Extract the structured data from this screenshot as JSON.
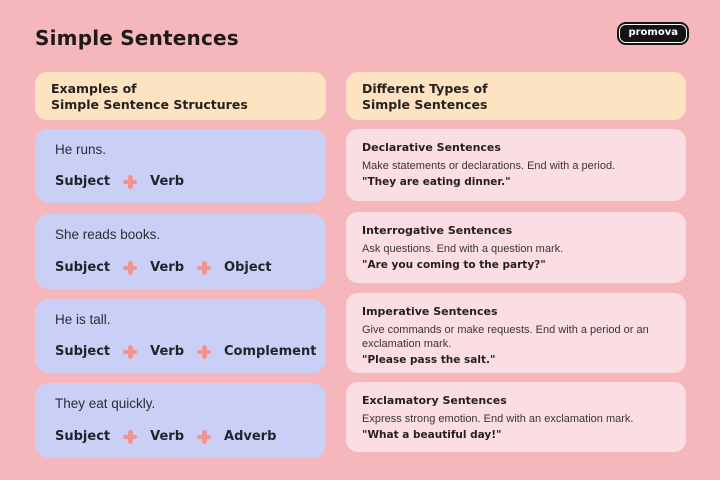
{
  "page": {
    "title": "Simple Sentences",
    "brand": "promova"
  },
  "colors": {
    "background": "#f5b6bc",
    "section_header": "#fde3c1",
    "structure_card": "#cad0f5",
    "type_card": "#fbdee3",
    "plus_icon": "#ef948f",
    "badge_background": "#141414",
    "text_dark": "#241f1c"
  },
  "left_section": {
    "header_line1": "Examples of",
    "header_line2": "Simple Sentence Structures",
    "cards": [
      {
        "sentence": "He runs.",
        "parts": [
          "Subject",
          "Verb"
        ]
      },
      {
        "sentence": "She reads books.",
        "parts": [
          "Subject",
          "Verb",
          "Object"
        ]
      },
      {
        "sentence": "He is tall.",
        "parts": [
          "Subject",
          "Verb",
          "Complement"
        ]
      },
      {
        "sentence": "They eat quickly.",
        "parts": [
          "Subject",
          "Verb",
          "Adverb"
        ]
      }
    ]
  },
  "right_section": {
    "header_line1": "Different Types of",
    "header_line2": "Simple Sentences",
    "cards": [
      {
        "title": "Declarative Sentences",
        "description": "Make statements or declarations. End with a period.",
        "example": "\"They are eating dinner.\""
      },
      {
        "title": "Interrogative Sentences",
        "description": "Ask questions. End with a question mark.",
        "example": "\"Are you coming to the party?\""
      },
      {
        "title": "Imperative Sentences",
        "description": "Give commands or make requests. End with a period or an exclamation mark.",
        "example": "\"Please pass the salt.\""
      },
      {
        "title": "Exclamatory Sentences",
        "description": "Express strong emotion. End with an exclamation mark.",
        "example": "\"What a beautiful day!\""
      }
    ]
  }
}
